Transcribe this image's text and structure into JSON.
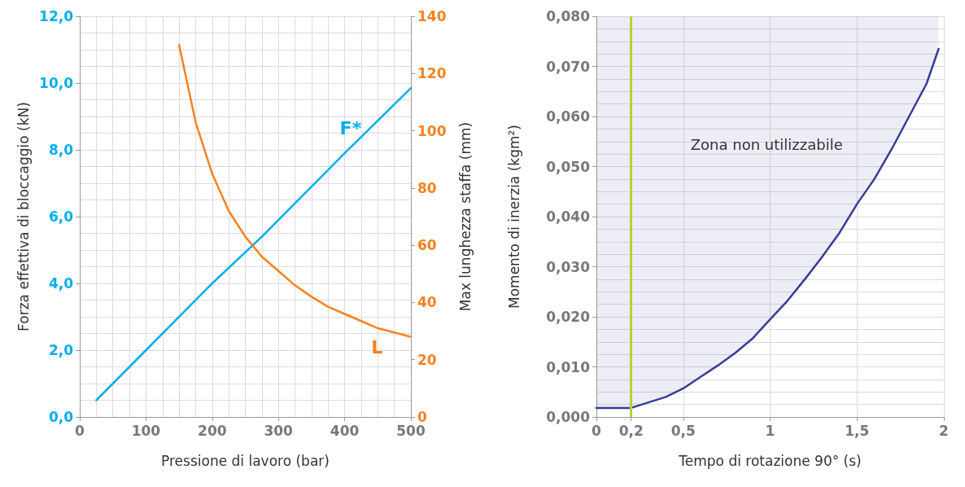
{
  "chart_data": [
    {
      "type": "line",
      "xlabel": "Pressione di lavoro (bar)",
      "ylabel": "Forza effettiva di bloccaggio (kN)",
      "y2label": "Max lunghezza staffa (mm)",
      "xlim": [
        0,
        500
      ],
      "xticks": [
        0,
        100,
        200,
        300,
        400,
        500
      ],
      "ylim": [
        0,
        12
      ],
      "yticks": [
        {
          "value": 0,
          "label": "0,0"
        },
        {
          "value": 2,
          "label": "2,0"
        },
        {
          "value": 4,
          "label": "4,0"
        },
        {
          "value": 6,
          "label": "6,0"
        },
        {
          "value": 8,
          "label": "8,0"
        },
        {
          "value": 10,
          "label": "10,0"
        },
        {
          "value": 12,
          "label": "12,0"
        }
      ],
      "y2lim": [
        0,
        140
      ],
      "y2ticks": [
        0,
        20,
        40,
        60,
        80,
        100,
        120,
        140
      ],
      "grid": true,
      "legend": false,
      "marker": "none",
      "line_style": "solid",
      "series": [
        {
          "name": "F*",
          "color": "#00aeef",
          "x": [
            25,
            100,
            200,
            275,
            300,
            400,
            500
          ],
          "values": [
            0.5,
            2.0,
            4.0,
            5.4,
            5.9,
            7.9,
            9.85
          ]
        },
        {
          "name": "L",
          "color": "#f58220",
          "axis": "y2",
          "x": [
            150,
            175,
            200,
            225,
            250,
            275,
            300,
            325,
            350,
            375,
            400,
            425,
            450,
            475,
            500
          ],
          "values": [
            130,
            103,
            85,
            72,
            63,
            56,
            51,
            46,
            42,
            38.5,
            36,
            33.5,
            31,
            29.5,
            28
          ]
        }
      ]
    },
    {
      "type": "line",
      "xlabel": "Tempo di rotazione 90° (s)",
      "ylabel": "Momento di inerzia (kgm²)",
      "xlim": [
        0,
        2
      ],
      "xticks": [
        0,
        {
          "value": 0.2,
          "label": "0,2"
        },
        {
          "value": 0.5,
          "label": "0,5"
        },
        1,
        {
          "value": 1.5,
          "label": "1,5"
        },
        2
      ],
      "ylim": [
        0,
        0.08
      ],
      "yticks": [
        {
          "value": 0,
          "label": "0,000"
        },
        {
          "value": 0.01,
          "label": "0,010"
        },
        {
          "value": 0.02,
          "label": "0,020"
        },
        {
          "value": 0.03,
          "label": "0,030"
        },
        {
          "value": 0.04,
          "label": "0,040"
        },
        {
          "value": 0.05,
          "label": "0,050"
        },
        {
          "value": 0.06,
          "label": "0,060"
        },
        {
          "value": 0.07,
          "label": "0,070"
        },
        {
          "value": 0.08,
          "label": "0,080"
        }
      ],
      "grid": true,
      "legend": false,
      "marker": "none",
      "line_style": "solid",
      "ref_lines": [
        {
          "axis": "x",
          "value": 0.2,
          "color": "#b5d334"
        }
      ],
      "annotations": [
        "Zona non utilizzabile"
      ],
      "series": [
        {
          "color": "#3b3b96",
          "x": [
            0,
            0.2,
            0.4,
            0.5,
            0.6,
            0.7,
            0.8,
            0.9,
            1.0,
            1.1,
            1.2,
            1.3,
            1.4,
            1.5,
            1.6,
            1.7,
            1.8,
            1.9,
            1.97
          ],
          "values": [
            0.0018,
            0.0018,
            0.004,
            0.0057,
            0.008,
            0.0103,
            0.0128,
            0.0157,
            0.0195,
            0.0232,
            0.0275,
            0.032,
            0.0368,
            0.0425,
            0.0475,
            0.0535,
            0.06,
            0.0665,
            0.0735
          ],
          "lower": [
            0.0018,
            0.0018,
            0.004,
            0.0057,
            0.008,
            0.0103,
            0.0128,
            0.0157,
            0.0195,
            0.0232,
            0.0275,
            0.032,
            0.0368,
            0.0425,
            0.0475,
            0.0535,
            0.06,
            0.0665,
            0.0735
          ],
          "upper": [
            0.08,
            0.08,
            0.08,
            0.08,
            0.08,
            0.08,
            0.08,
            0.08,
            0.08,
            0.08,
            0.08,
            0.08,
            0.08,
            0.08,
            0.08,
            0.08,
            0.08,
            0.08,
            0.08
          ]
        }
      ]
    }
  ]
}
